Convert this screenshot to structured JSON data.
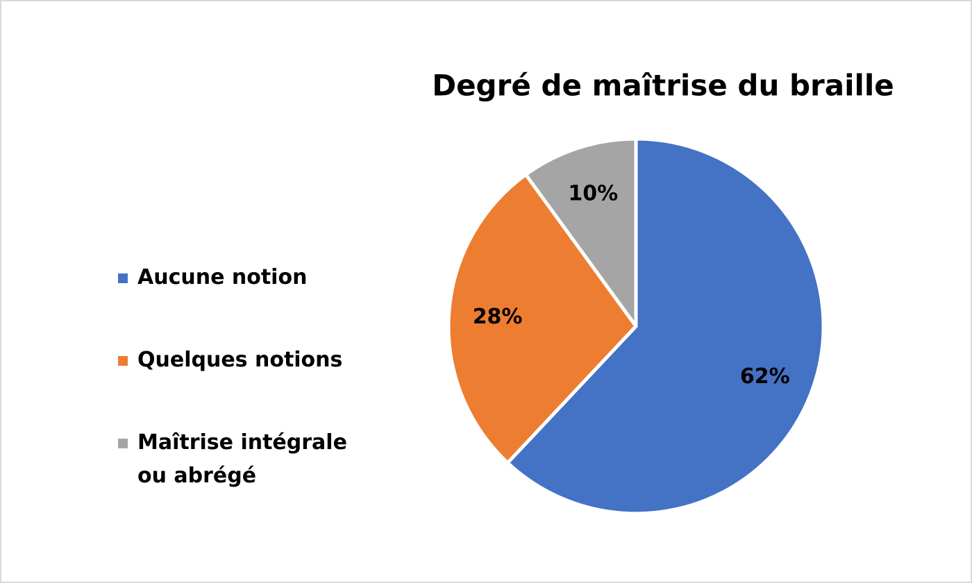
{
  "chart_data": {
    "type": "pie",
    "title": "Degré de maîtrise du braille",
    "categories": [
      "Aucune notion",
      "Quelques notions",
      "Maîtrise intégrale ou abrégé"
    ],
    "values": [
      62,
      28,
      10
    ],
    "value_labels": [
      "62%",
      "28%",
      "10%"
    ],
    "colors": [
      "#4472c4",
      "#ed7d31",
      "#a5a5a5"
    ],
    "legend": "left"
  }
}
